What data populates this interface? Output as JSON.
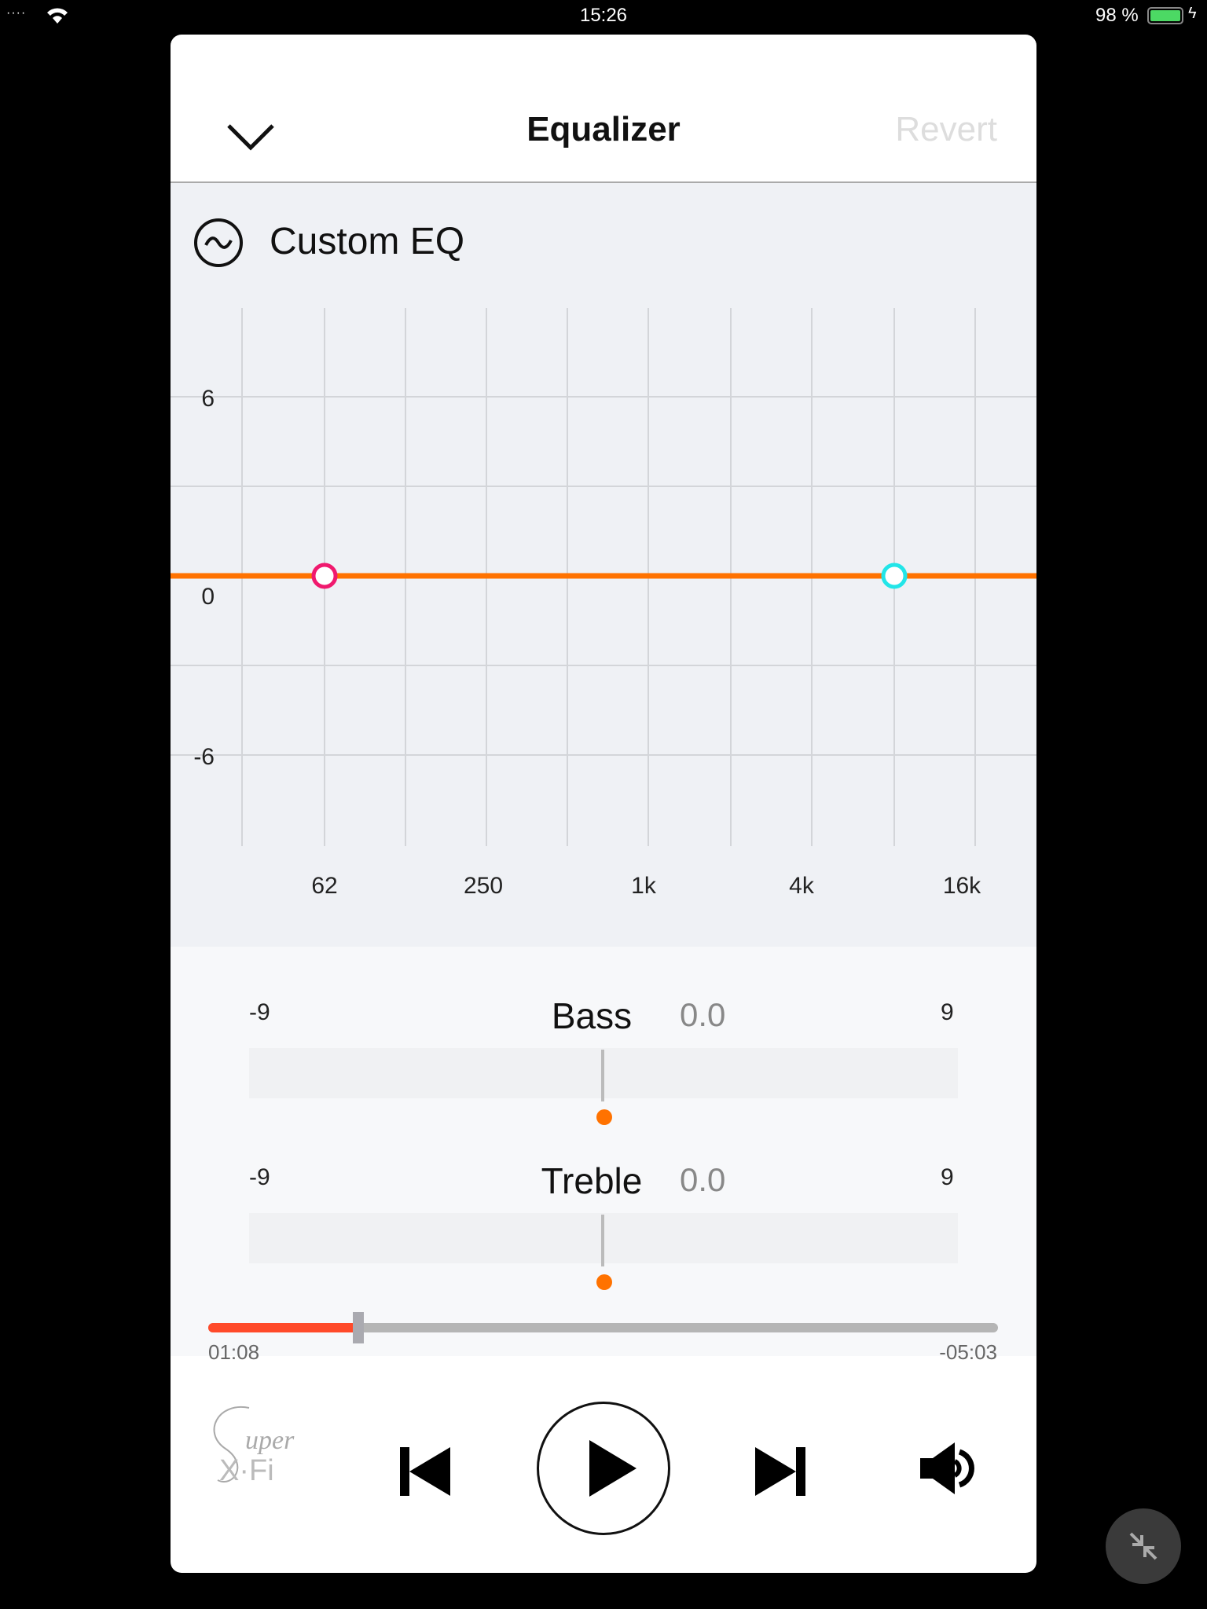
{
  "status_bar": {
    "time": "15:26",
    "battery": "98 %"
  },
  "header": {
    "title": "Equalizer",
    "revert_label": "Revert"
  },
  "preset": {
    "name": "Custom EQ",
    "icon": "sine-wave-icon"
  },
  "chart_data": {
    "type": "line",
    "y_ticks": [
      "6",
      "0",
      "-6"
    ],
    "x_ticks": [
      "62",
      "250",
      "1k",
      "4k",
      "16k"
    ],
    "ylim": [
      -9,
      9
    ],
    "grid": true,
    "curve_value": 0,
    "handles": [
      {
        "band": "bass",
        "frequency": "62",
        "value": 0,
        "color": "#f0196e"
      },
      {
        "band": "treble",
        "frequency": "8k",
        "value": 0,
        "color": "#22e5e8"
      }
    ],
    "line_color": "#ff7200"
  },
  "sliders": [
    {
      "name": "Bass",
      "min": "-9",
      "max": "9",
      "value": "0.0"
    },
    {
      "name": "Treble",
      "min": "-9",
      "max": "9",
      "value": "0.0"
    }
  ],
  "player": {
    "elapsed": "01:08",
    "remaining": "-05:03",
    "progress": 0.19,
    "progress_color": "#ff4a2a",
    "logo": "Super X-Fi"
  }
}
